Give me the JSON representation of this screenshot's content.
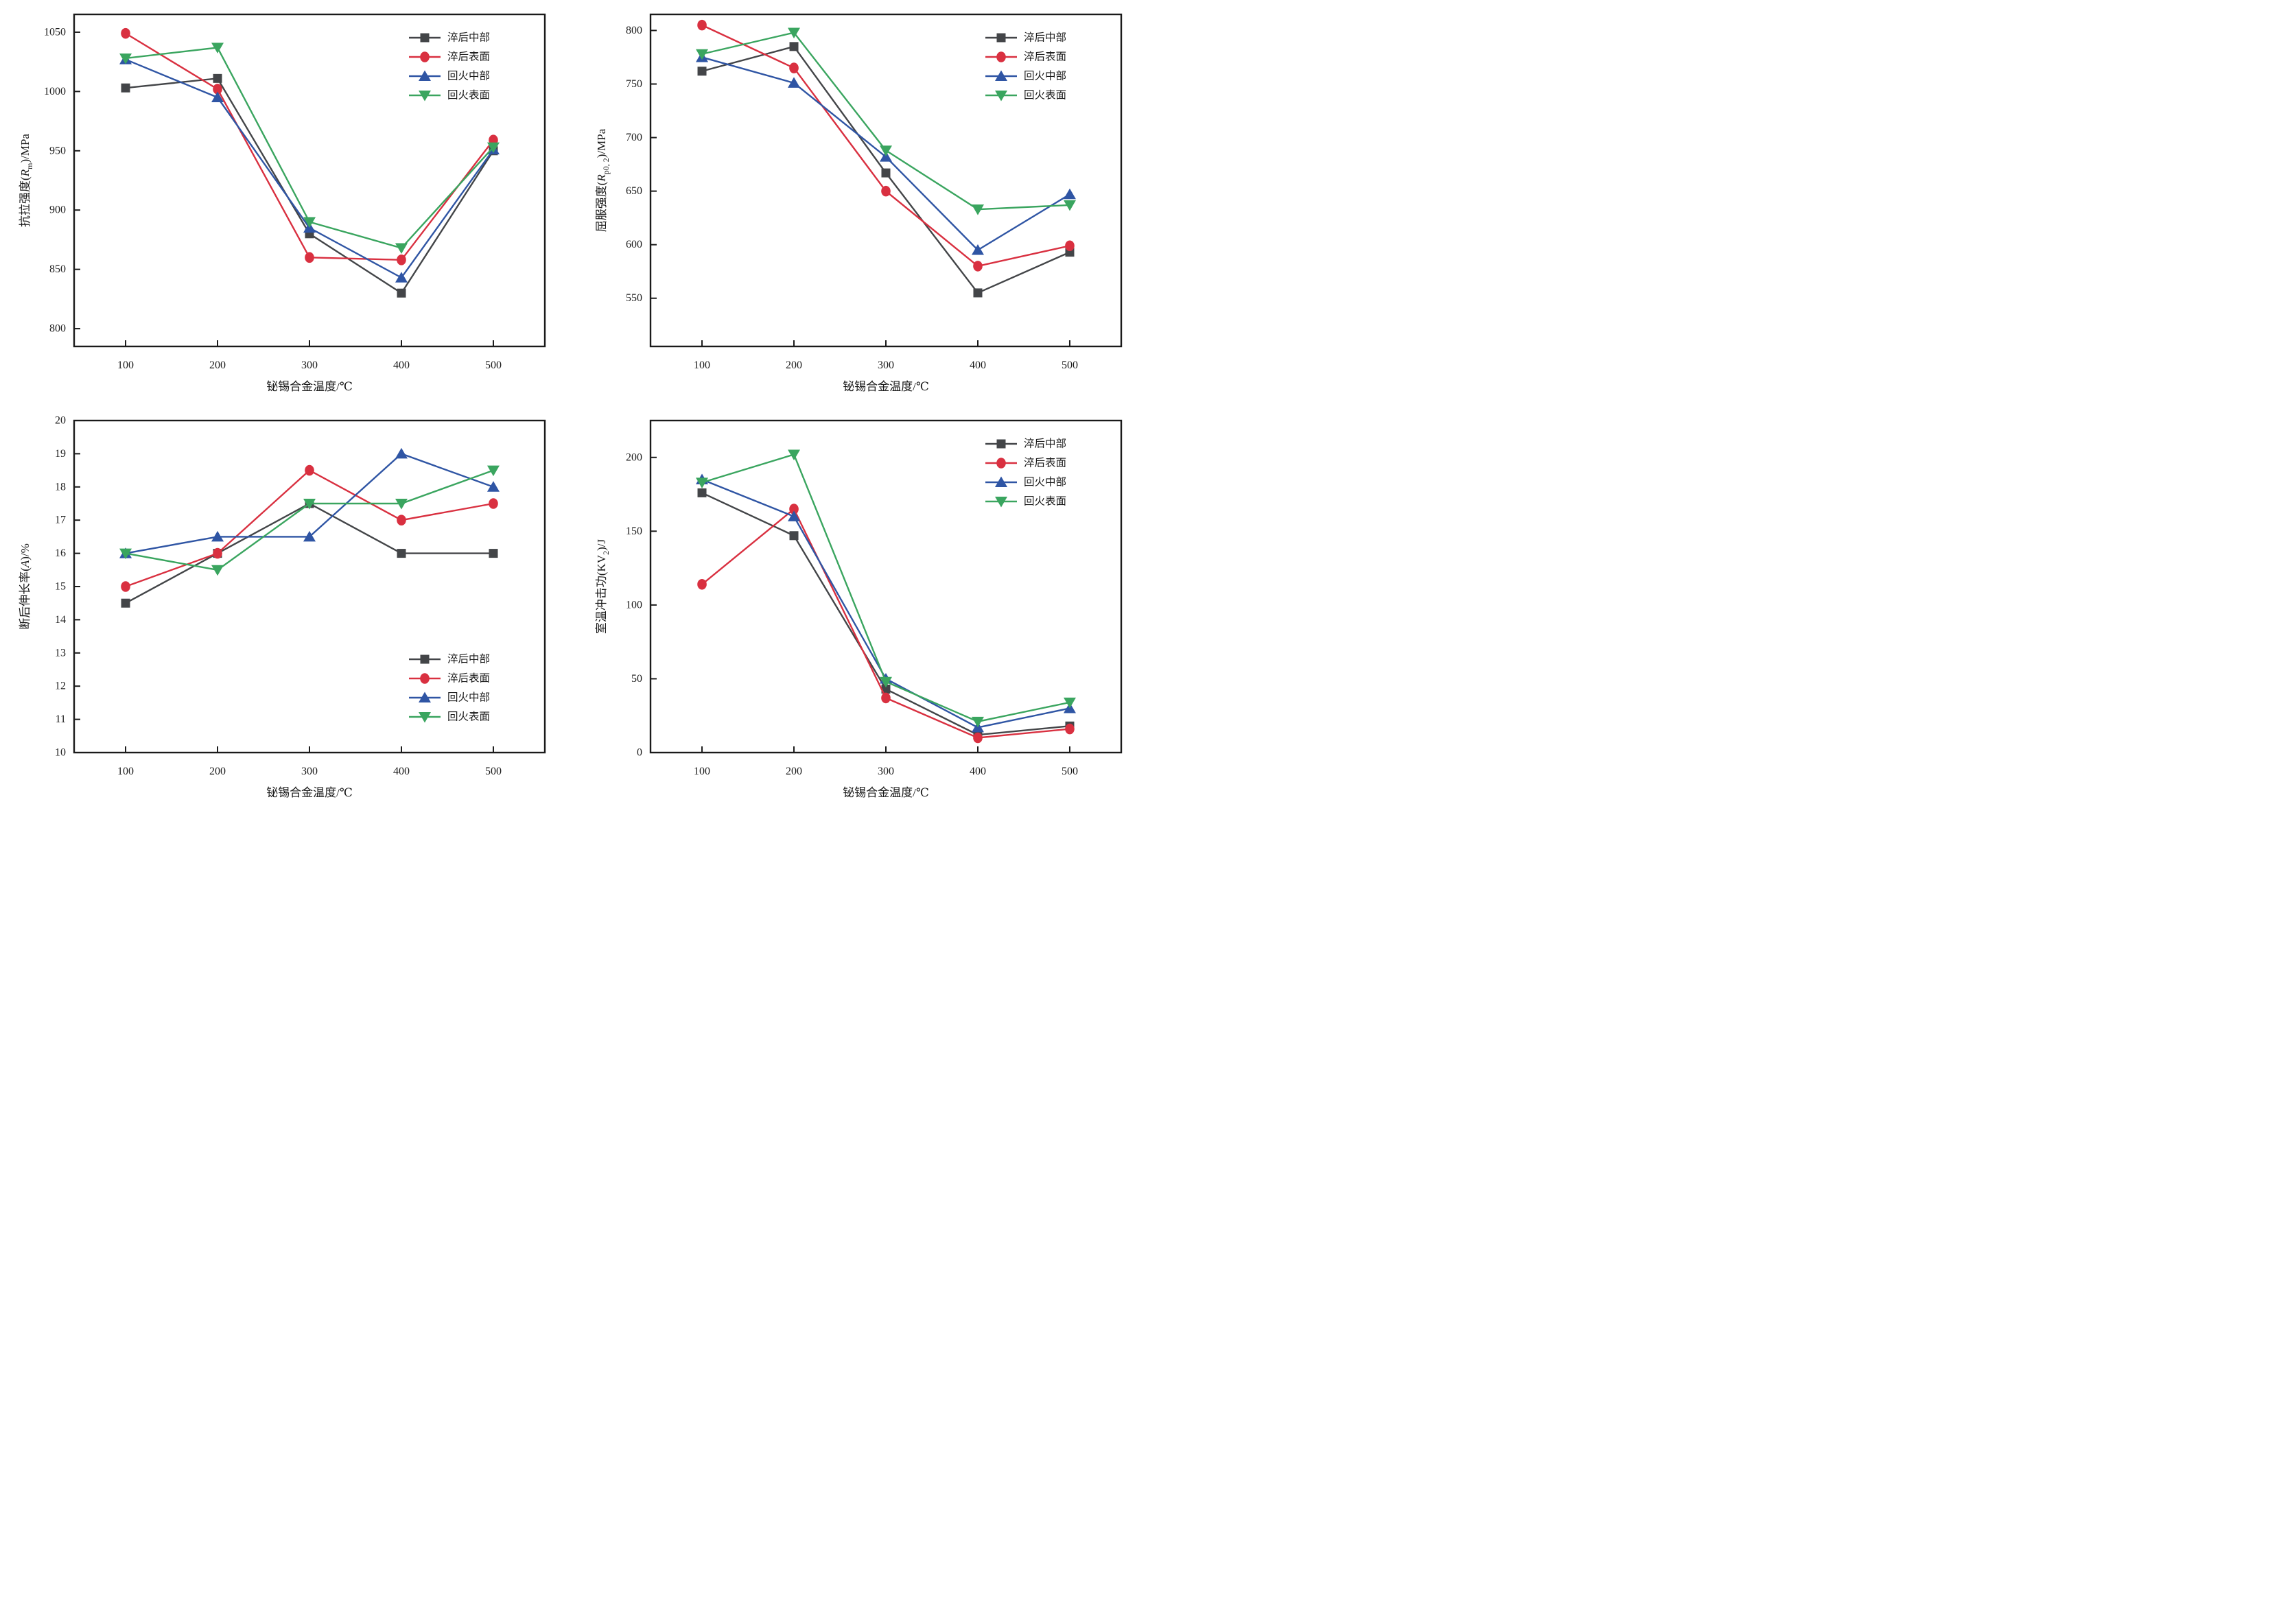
{
  "figure": {
    "background": "#ffffff",
    "x_axis_label": "铋锡合金温度/℃",
    "legend_labels": [
      "淬后中部",
      "淬后表面",
      "回火中部",
      "回火表面"
    ],
    "series_colors": {
      "quench_center": "#434548",
      "quench_surface": "#d93040",
      "temper_center": "#2f55a4",
      "temper_surface": "#3aa55f"
    }
  },
  "chart_data": [
    {
      "type": "line",
      "title": "",
      "xlabel": "铋锡合金温度/℃",
      "ylabel": "抗拉强度(Rm)/MPa",
      "ylabel_parts": {
        "prefix": "抗拉强度(",
        "symbol": "R",
        "symbol_italic": true,
        "subscript": "m",
        "suffix": ")/MPa"
      },
      "x": [
        100,
        200,
        300,
        400,
        500
      ],
      "xlim": [
        44,
        556
      ],
      "ylim": [
        785,
        1065
      ],
      "yticks": [
        800,
        850,
        900,
        950,
        1000,
        1050
      ],
      "grid": false,
      "legend_position": "top-right",
      "series": [
        {
          "name": "淬后中部",
          "marker": "square",
          "color": "#434548",
          "values": [
            1003,
            1011,
            880,
            830,
            950
          ]
        },
        {
          "name": "淬后表面",
          "marker": "circle",
          "color": "#d93040",
          "values": [
            1049,
            1002,
            860,
            858,
            959
          ]
        },
        {
          "name": "回火中部",
          "marker": "triangle-up",
          "color": "#2f55a4",
          "values": [
            1027,
            995,
            885,
            843,
            951
          ]
        },
        {
          "name": "回火表面",
          "marker": "triangle-down",
          "color": "#3aa55f",
          "values": [
            1028,
            1037,
            890,
            868,
            953
          ]
        }
      ]
    },
    {
      "type": "line",
      "title": "",
      "xlabel": "铋锡合金温度/℃",
      "ylabel": "屈服强度(Rp0, 2)/MPa",
      "ylabel_parts": {
        "prefix": "屈服强度(",
        "symbol": "R",
        "symbol_italic": true,
        "subscript": "p0, 2",
        "suffix": ")/MPa"
      },
      "x": [
        100,
        200,
        300,
        400,
        500
      ],
      "xlim": [
        44,
        556
      ],
      "ylim": [
        505,
        815
      ],
      "yticks": [
        550,
        600,
        650,
        700,
        750,
        800
      ],
      "grid": false,
      "legend_position": "top-right",
      "series": [
        {
          "name": "淬后中部",
          "marker": "square",
          "color": "#434548",
          "values": [
            762,
            785,
            667,
            555,
            593
          ]
        },
        {
          "name": "淬后表面",
          "marker": "circle",
          "color": "#d93040",
          "values": [
            805,
            765,
            650,
            580,
            599
          ]
        },
        {
          "name": "回火中部",
          "marker": "triangle-up",
          "color": "#2f55a4",
          "values": [
            775,
            751,
            682,
            595,
            647
          ]
        },
        {
          "name": "回火表面",
          "marker": "triangle-down",
          "color": "#3aa55f",
          "values": [
            778,
            798,
            688,
            633,
            637
          ]
        }
      ]
    },
    {
      "type": "line",
      "title": "",
      "xlabel": "铋锡合金温度/℃",
      "ylabel": "断后伸长率(A)/%",
      "ylabel_parts": {
        "prefix": "断后伸长率(",
        "symbol": "A",
        "symbol_italic": true,
        "subscript": "",
        "suffix": ")/%"
      },
      "x": [
        100,
        200,
        300,
        400,
        500
      ],
      "xlim": [
        44,
        556
      ],
      "ylim": [
        10,
        20
      ],
      "yticks": [
        10,
        11,
        12,
        13,
        14,
        15,
        16,
        17,
        18,
        19,
        20
      ],
      "grid": false,
      "legend_position": "bottom-right",
      "series": [
        {
          "name": "淬后中部",
          "marker": "square",
          "color": "#434548",
          "values": [
            14.5,
            16.0,
            17.5,
            16.0,
            16.0
          ]
        },
        {
          "name": "淬后表面",
          "marker": "circle",
          "color": "#d93040",
          "values": [
            15.0,
            16.0,
            18.5,
            17.0,
            17.5
          ]
        },
        {
          "name": "回火中部",
          "marker": "triangle-up",
          "color": "#2f55a4",
          "values": [
            16.0,
            16.5,
            16.5,
            19.0,
            18.0
          ]
        },
        {
          "name": "回火表面",
          "marker": "triangle-down",
          "color": "#3aa55f",
          "values": [
            16.0,
            15.5,
            17.5,
            17.5,
            18.5
          ]
        }
      ]
    },
    {
      "type": "line",
      "title": "",
      "xlabel": "铋锡合金温度/℃",
      "ylabel": "室温冲击功(KV2)/J",
      "ylabel_parts": {
        "prefix": "室温冲击功(",
        "symbol": "KV",
        "symbol_italic": false,
        "subscript": "2",
        "suffix": ")/J"
      },
      "x": [
        100,
        200,
        300,
        400,
        500
      ],
      "xlim": [
        44,
        556
      ],
      "ylim": [
        0,
        225
      ],
      "yticks": [
        0,
        50,
        100,
        150,
        200
      ],
      "grid": false,
      "legend_position": "top-right",
      "series": [
        {
          "name": "淬后中部",
          "marker": "square",
          "color": "#434548",
          "values": [
            176,
            147,
            43,
            12,
            18
          ]
        },
        {
          "name": "淬后表面",
          "marker": "circle",
          "color": "#d93040",
          "values": [
            114,
            165,
            37,
            10,
            16
          ]
        },
        {
          "name": "回火中部",
          "marker": "triangle-up",
          "color": "#2f55a4",
          "values": [
            185,
            160,
            50,
            17,
            30
          ]
        },
        {
          "name": "回火表面",
          "marker": "triangle-down",
          "color": "#3aa55f",
          "values": [
            183,
            202,
            48,
            21,
            34
          ]
        }
      ]
    }
  ]
}
